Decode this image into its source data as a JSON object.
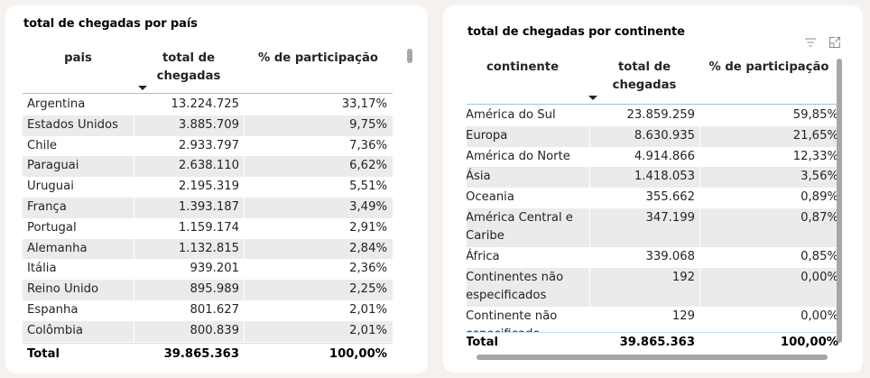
{
  "left_visual": {
    "title": "total de chegadas por país",
    "columns": [
      "pais",
      "total de chegadas",
      "% de participação"
    ],
    "rows": [
      {
        "name": "Argentina",
        "total": "13.224.725",
        "pct": "33,17%"
      },
      {
        "name": "Estados Unidos",
        "total": "3.885.709",
        "pct": "9,75%"
      },
      {
        "name": "Chile",
        "total": "2.933.797",
        "pct": "7,36%"
      },
      {
        "name": "Paraguai",
        "total": "2.638.110",
        "pct": "6,62%"
      },
      {
        "name": "Uruguai",
        "total": "2.195.319",
        "pct": "5,51%"
      },
      {
        "name": "França",
        "total": "1.393.187",
        "pct": "3,49%"
      },
      {
        "name": "Portugal",
        "total": "1.159.174",
        "pct": "2,91%"
      },
      {
        "name": "Alemanha",
        "total": "1.132.815",
        "pct": "2,84%"
      },
      {
        "name": "Itália",
        "total": "939.201",
        "pct": "2,36%"
      },
      {
        "name": "Reino Unido",
        "total": "895.989",
        "pct": "2,25%"
      },
      {
        "name": "Espanha",
        "total": "801.627",
        "pct": "2,01%"
      },
      {
        "name": "Colômbia",
        "total": "800.839",
        "pct": "2,01%"
      }
    ],
    "total": {
      "label": "Total",
      "total": "39.865.363",
      "pct": "100,00%"
    }
  },
  "right_visual": {
    "title": "total de chegadas por continente",
    "icons": {
      "filter": "filter-icon",
      "focus": "focus-mode-icon"
    },
    "columns": [
      "continente",
      "total de chegadas",
      "% de participação"
    ],
    "rows": [
      {
        "name": "América do Sul",
        "total": "23.859.259",
        "pct": "59,85%"
      },
      {
        "name": "Europa",
        "total": "8.630.935",
        "pct": "21,65%"
      },
      {
        "name": "América do Norte",
        "total": "4.914.866",
        "pct": "12,33%"
      },
      {
        "name": "Ásia",
        "total": "1.418.053",
        "pct": "3,56%"
      },
      {
        "name": "Oceania",
        "total": "355.662",
        "pct": "0,89%"
      },
      {
        "name": "América Central e Caribe",
        "total": "347.199",
        "pct": "0,87%"
      },
      {
        "name": "África",
        "total": "339.068",
        "pct": "0,85%"
      },
      {
        "name": "Continentes não especificados",
        "total": "192",
        "pct": "0,00%"
      },
      {
        "name": "Continente não especificado",
        "total": "129",
        "pct": "0,00%"
      }
    ],
    "total": {
      "label": "Total",
      "total": "39.865.363",
      "pct": "100,00%"
    }
  },
  "colors": {
    "page_background": "#f5f1ee",
    "card_background": "#ffffff",
    "alt_row": "#ebebeb",
    "header_rule": "#99c5e8",
    "scrollbar": "#a6a6a6"
  }
}
